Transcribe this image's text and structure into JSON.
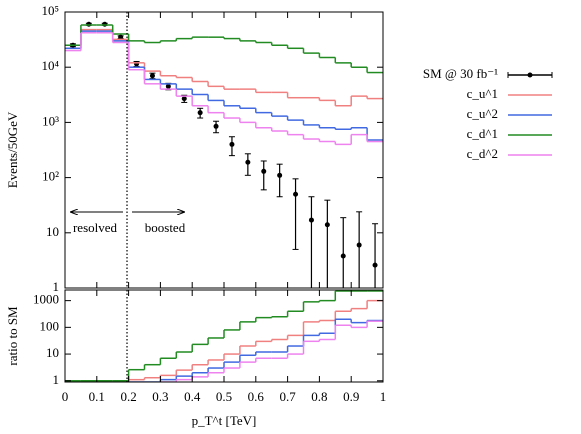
{
  "chart_data": [
    {
      "type": "histogram",
      "log_y": true,
      "ylabel": "Events/50GeV",
      "bins": [
        0,
        0.05,
        0.1,
        0.15,
        0.2,
        0.25,
        0.3,
        0.35,
        0.4,
        0.45,
        0.5,
        0.55,
        0.6,
        0.65,
        0.7,
        0.75,
        0.8,
        0.85,
        0.9,
        0.95,
        1
      ],
      "xlim": [
        0,
        1
      ],
      "xticks": [
        0,
        0.1,
        0.2,
        0.3,
        0.4,
        0.5,
        0.6,
        0.7,
        0.8,
        0.9,
        1
      ],
      "ylim": [
        1,
        100000
      ],
      "yticks": [
        1,
        10,
        {
          "value": 100,
          "label": "10²"
        },
        {
          "value": 1000,
          "label": "10³"
        },
        {
          "value": 10000,
          "label": "10⁴"
        },
        {
          "value": 100000,
          "label": "10⁵"
        }
      ],
      "divider": 0.195,
      "annotations": [
        "resolved",
        "boosted"
      ],
      "series": [
        {
          "name": "SM @ 30 fb⁻¹",
          "color": "#000000",
          "values": [
            25000,
            60000,
            60000,
            35000,
            11500,
            7000,
            4500,
            2700,
            1500,
            850,
            400,
            190,
            130,
            110,
            50,
            17,
            14,
            3.8,
            6,
            2.6
          ],
          "errors": [
            1500,
            2500,
            2500,
            2000,
            1200,
            800,
            600,
            400,
            300,
            200,
            150,
            80,
            70,
            65,
            45,
            28,
            25,
            15,
            18,
            12
          ]
        },
        {
          "name": "c_u^1",
          "color": "#f08080",
          "values": [
            22000,
            48000,
            48000,
            32000,
            12000,
            8500,
            7000,
            6500,
            5500,
            4500,
            4000,
            4000,
            3500,
            3500,
            2800,
            2800,
            2500,
            2000,
            3000,
            2700
          ]
        },
        {
          "name": "c_u^2",
          "color": "#4169e1",
          "values": [
            22000,
            45000,
            45000,
            30000,
            10000,
            6000,
            5000,
            4000,
            3200,
            2500,
            2000,
            1800,
            1500,
            1300,
            1100,
            900,
            800,
            750,
            800,
            480
          ]
        },
        {
          "name": "c_d^1",
          "color": "#228b22",
          "values": [
            25000,
            58000,
            58000,
            40000,
            30000,
            28000,
            30000,
            33000,
            35000,
            35000,
            33000,
            30000,
            28000,
            25000,
            22000,
            18000,
            15000,
            12000,
            10000,
            8000
          ]
        },
        {
          "name": "c_d^2",
          "color": "#ee82ee",
          "values": [
            20000,
            42000,
            42000,
            28000,
            9000,
            5000,
            4000,
            3000,
            2000,
            1500,
            1200,
            1000,
            800,
            700,
            600,
            500,
            450,
            400,
            600,
            450
          ]
        }
      ]
    },
    {
      "type": "histogram",
      "log_y": true,
      "ylabel": "ratio to SM",
      "xlabel": "p_T^t [TeV]",
      "bins": [
        0,
        0.05,
        0.1,
        0.15,
        0.2,
        0.25,
        0.3,
        0.35,
        0.4,
        0.45,
        0.5,
        0.55,
        0.6,
        0.65,
        0.7,
        0.75,
        0.8,
        0.85,
        0.9,
        0.95,
        1
      ],
      "xlim": [
        0,
        1
      ],
      "xticks": [
        0,
        0.1,
        0.2,
        0.3,
        0.4,
        0.5,
        0.6,
        0.7,
        0.8,
        0.9,
        1
      ],
      "ylim": [
        0.9,
        2500
      ],
      "yticks": [
        1,
        10,
        100,
        1000
      ],
      "divider": 0.195,
      "series": [
        {
          "color": "#f08080",
          "values": [
            0.95,
            0.95,
            0.95,
            0.95,
            1.1,
            1.3,
            1.6,
            2.5,
            4,
            6,
            10,
            20,
            30,
            35,
            50,
            160,
            180,
            400,
            500,
            1000
          ]
        },
        {
          "color": "#4169e1",
          "values": [
            0.9,
            0.9,
            0.9,
            0.9,
            0.9,
            0.9,
            1.1,
            1.5,
            2,
            3,
            5,
            9,
            12,
            12,
            20,
            50,
            60,
            200,
            150,
            180
          ]
        },
        {
          "color": "#228b22",
          "values": [
            1,
            1,
            1,
            1,
            2.6,
            4,
            7,
            12,
            23,
            40,
            80,
            160,
            230,
            250,
            400,
            900,
            1000,
            2300,
            2300,
            2300
          ]
        },
        {
          "color": "#ee82ee",
          "values": [
            0.85,
            0.85,
            0.85,
            0.85,
            0.8,
            0.8,
            0.9,
            1.1,
            1.4,
            2,
            3,
            5,
            7,
            7,
            10,
            30,
            35,
            120,
            100,
            170
          ]
        }
      ]
    }
  ]
}
